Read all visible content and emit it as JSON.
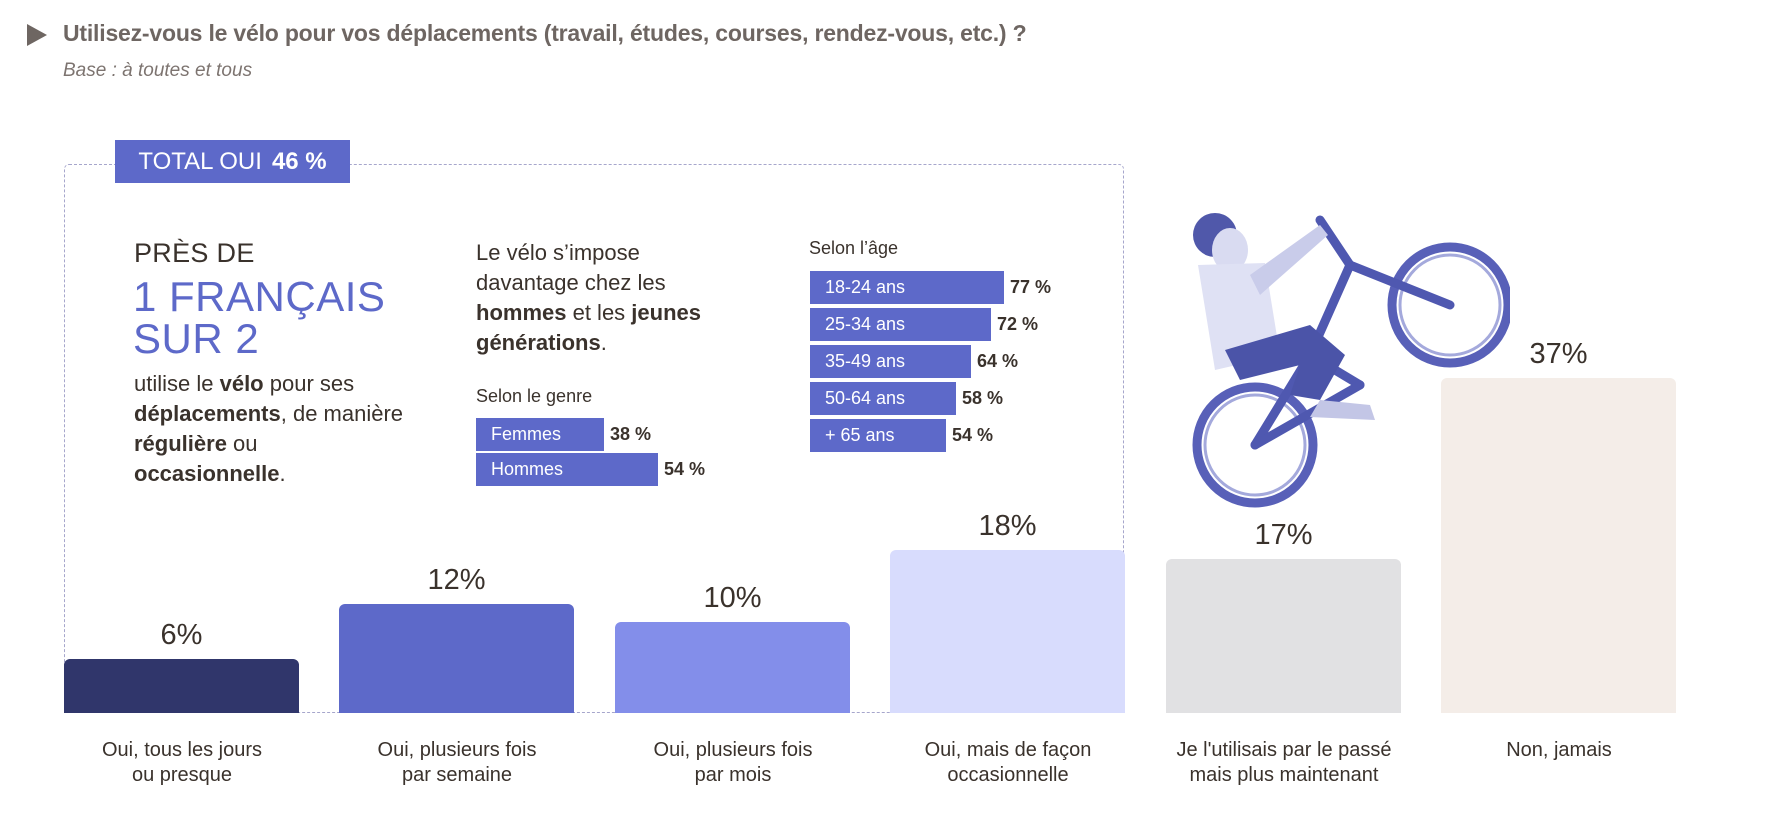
{
  "header": {
    "title": "Utilisez-vous le vélo pour vos déplacements (travail, études, courses, rendez-vous, etc.) ?",
    "subtitle": "Base : à toutes et tous",
    "bullet_icon": "play-triangle-icon"
  },
  "total_badge": {
    "label": "TOTAL OUI",
    "value": "46 %"
  },
  "highlight": {
    "intro": "PRÈS DE",
    "line1": "1 FRANÇAIS",
    "line2": "SUR 2",
    "body": [
      {
        "t": "utilise le ",
        "b": false
      },
      {
        "t": "vélo",
        "b": true
      },
      {
        "t": " pour ses ",
        "b": false
      },
      {
        "t": "déplacements",
        "b": true
      },
      {
        "t": ", de manière ",
        "b": false
      },
      {
        "t": "régulière",
        "b": true
      },
      {
        "t": " ou ",
        "b": false
      },
      {
        "t": "occasionnelle",
        "b": true
      },
      {
        "t": ".",
        "b": false
      }
    ]
  },
  "insight": {
    "body": [
      {
        "t": "Le vélo s’impose davantage chez les ",
        "b": false
      },
      {
        "t": "hommes",
        "b": true
      },
      {
        "t": " et les ",
        "b": false
      },
      {
        "t": "jeunes générations",
        "b": true
      },
      {
        "t": ".",
        "b": false
      }
    ]
  },
  "gender": {
    "title": "Selon le genre",
    "rows": [
      {
        "label": "Femmes",
        "value": 38,
        "display": "38 %"
      },
      {
        "label": "Hommes",
        "value": 54,
        "display": "54 %"
      }
    ]
  },
  "age": {
    "title": "Selon l’âge",
    "rows": [
      {
        "label": "18-24 ans",
        "value": 77,
        "display": "77 %"
      },
      {
        "label": "25-34 ans",
        "value": 72,
        "display": "72 %"
      },
      {
        "label": "35-49 ans",
        "value": 64,
        "display": "64 %"
      },
      {
        "label": "50-64 ans",
        "value": 58,
        "display": "58 %"
      },
      {
        "label": "+ 65 ans",
        "value": 54,
        "display": "54 %"
      }
    ]
  },
  "colors": {
    "accent": "#5d69c9",
    "text": "#3a322c",
    "title_grey": "#6e6662",
    "dashed_border": "#a6a6cc"
  },
  "image": {
    "alt": "cyclist doing a wheelie (duotone blue)",
    "icon": "cyclist-illustration"
  },
  "chart_data": [
    {
      "type": "bar",
      "title": "Utilisez-vous le vélo pour vos déplacements (travail, études, courses, rendez-vous, etc.) ?",
      "subtitle": "Base : à toutes et tous",
      "categories": [
        "Oui, tous les jours ou presque",
        "Oui, plusieurs fois par semaine",
        "Oui, plusieurs fois par mois",
        "Oui, mais de façon occasionnelle",
        "Je l'utilisais par le passé mais plus maintenant",
        "Non, jamais"
      ],
      "category_lines": [
        [
          "Oui, tous les jours",
          "ou presque"
        ],
        [
          "Oui, plusieurs fois",
          "par semaine"
        ],
        [
          "Oui, plusieurs fois",
          "par mois"
        ],
        [
          "Oui, mais de façon",
          "occasionnelle"
        ],
        [
          "Je l'utilisais par le passé",
          "mais plus maintenant"
        ],
        [
          "Non, jamais"
        ]
      ],
      "values": [
        6,
        12,
        10,
        18,
        17,
        37
      ],
      "value_labels": [
        "6%",
        "12%",
        "10%",
        "18%",
        "17%",
        "37%"
      ],
      "colors": [
        "#30366b",
        "#5d69c9",
        "#838eea",
        "#d8dcfd",
        "#e1e1e3",
        "#f4ede8"
      ],
      "annotation": "TOTAL OUI 46 %",
      "xlabel": "",
      "ylabel": "",
      "ylim": [
        0,
        40
      ],
      "grid": false,
      "legend": "none"
    },
    {
      "type": "bar",
      "orientation": "horizontal",
      "title": "Selon le genre",
      "categories": [
        "Femmes",
        "Hommes"
      ],
      "values": [
        38,
        54
      ],
      "unit": "%"
    },
    {
      "type": "bar",
      "orientation": "horizontal",
      "title": "Selon l’âge",
      "categories": [
        "18-24 ans",
        "25-34 ans",
        "35-49 ans",
        "50-64 ans",
        "+ 65 ans"
      ],
      "values": [
        77,
        72,
        64,
        58,
        54
      ],
      "unit": "%"
    }
  ]
}
